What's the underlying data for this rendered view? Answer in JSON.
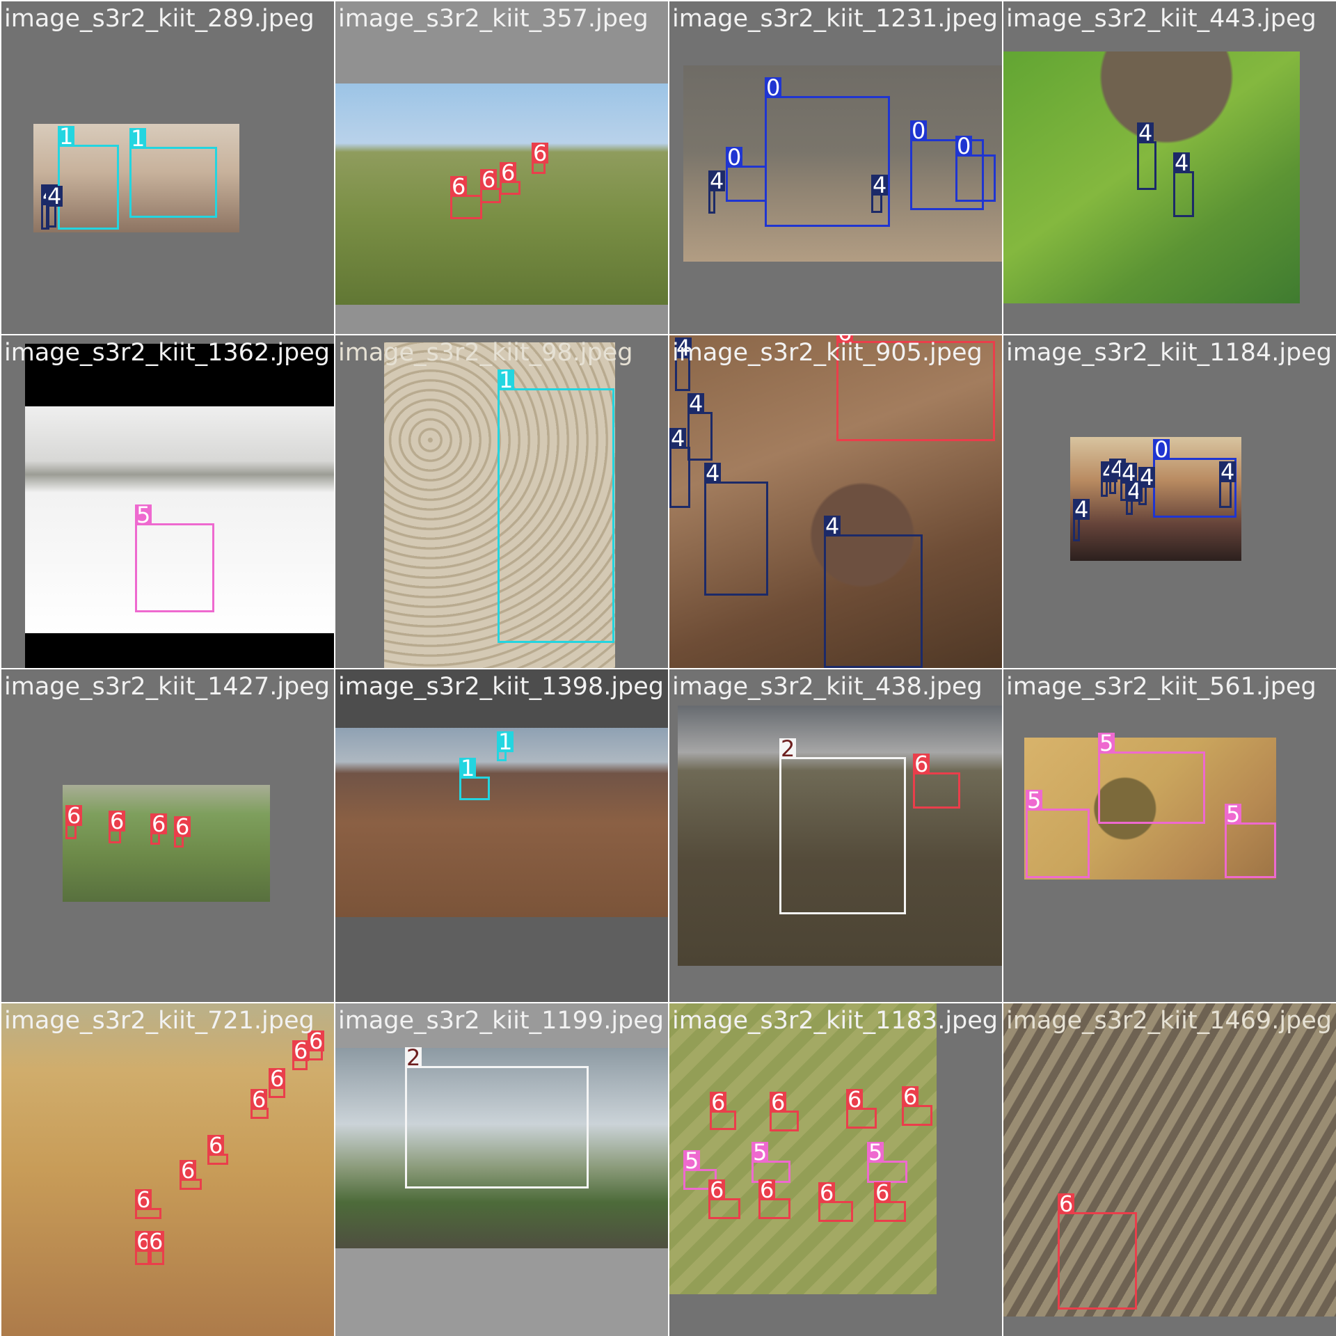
{
  "mosaic": {
    "images": [
      {
        "filename": "image_s3r2_kiit_289.jpeg",
        "photo_class": "photo-desert",
        "detections": [
          "1",
          "1",
          "4",
          "4"
        ]
      },
      {
        "filename": "image_s3r2_kiit_357.jpeg",
        "photo_class": "photo-steppe",
        "detections": [
          "6",
          "6",
          "6",
          "6"
        ]
      },
      {
        "filename": "image_s3r2_kiit_1231.jpeg",
        "photo_class": "photo-gray-field",
        "detections": [
          "0",
          "0",
          "0",
          "0",
          "4",
          "4"
        ]
      },
      {
        "filename": "image_s3r2_kiit_443.jpeg",
        "photo_class": "photo-green-hill",
        "detections": [
          "4",
          "4"
        ]
      },
      {
        "filename": "image_s3r2_kiit_1362.jpeg",
        "photo_class": "photo-snow",
        "detections": [
          "5"
        ]
      },
      {
        "filename": "image_s3r2_kiit_98.jpeg",
        "photo_class": "photo-sand",
        "detections": [
          "1"
        ]
      },
      {
        "filename": "image_s3r2_kiit_905.jpeg",
        "photo_class": "photo-battle",
        "detections": [
          "4",
          "4",
          "4",
          "4",
          "4",
          "6"
        ]
      },
      {
        "filename": "image_s3r2_kiit_1184.jpeg",
        "photo_class": "photo-artillery",
        "detections": [
          "0",
          "4",
          "4",
          "4",
          "4",
          "4",
          "4",
          "4"
        ]
      },
      {
        "filename": "image_s3r2_kiit_1427.jpeg",
        "photo_class": "photo-valley",
        "detections": [
          "6",
          "6",
          "6",
          "6"
        ]
      },
      {
        "filename": "image_s3r2_kiit_1398.jpeg",
        "photo_class": "photo-brown-plain",
        "detections": [
          "1",
          "1"
        ]
      },
      {
        "filename": "image_s3r2_kiit_438.jpeg",
        "photo_class": "photo-radar-field",
        "detections": [
          "2",
          "6"
        ]
      },
      {
        "filename": "image_s3r2_kiit_561.jpeg",
        "photo_class": "photo-tan",
        "detections": [
          "5",
          "5",
          "5"
        ]
      },
      {
        "filename": "image_s3r2_kiit_721.jpeg",
        "photo_class": "photo-yellow-hills",
        "detections": [
          "6",
          "6",
          "6",
          "6",
          "6",
          "6",
          "6",
          "6",
          "6"
        ]
      },
      {
        "filename": "image_s3r2_kiit_1199.jpeg",
        "photo_class": "photo-sky-radar",
        "detections": [
          "2"
        ]
      },
      {
        "filename": "image_s3r2_kiit_1183.jpeg",
        "photo_class": "photo-green-drone",
        "detections": [
          "6",
          "6",
          "6",
          "6",
          "5",
          "5",
          "5",
          "6",
          "6",
          "6",
          "6"
        ]
      },
      {
        "filename": "image_s3r2_kiit_1469.jpeg",
        "photo_class": "photo-dirt-field",
        "detections": [
          "6"
        ]
      }
    ]
  },
  "class_colors": {
    "0": "#1f35d1",
    "1": "#23d5e0",
    "2": "#f5f5f5",
    "4": "#1c2a68",
    "5": "#ee69cf",
    "6": "#ea3e4b"
  }
}
